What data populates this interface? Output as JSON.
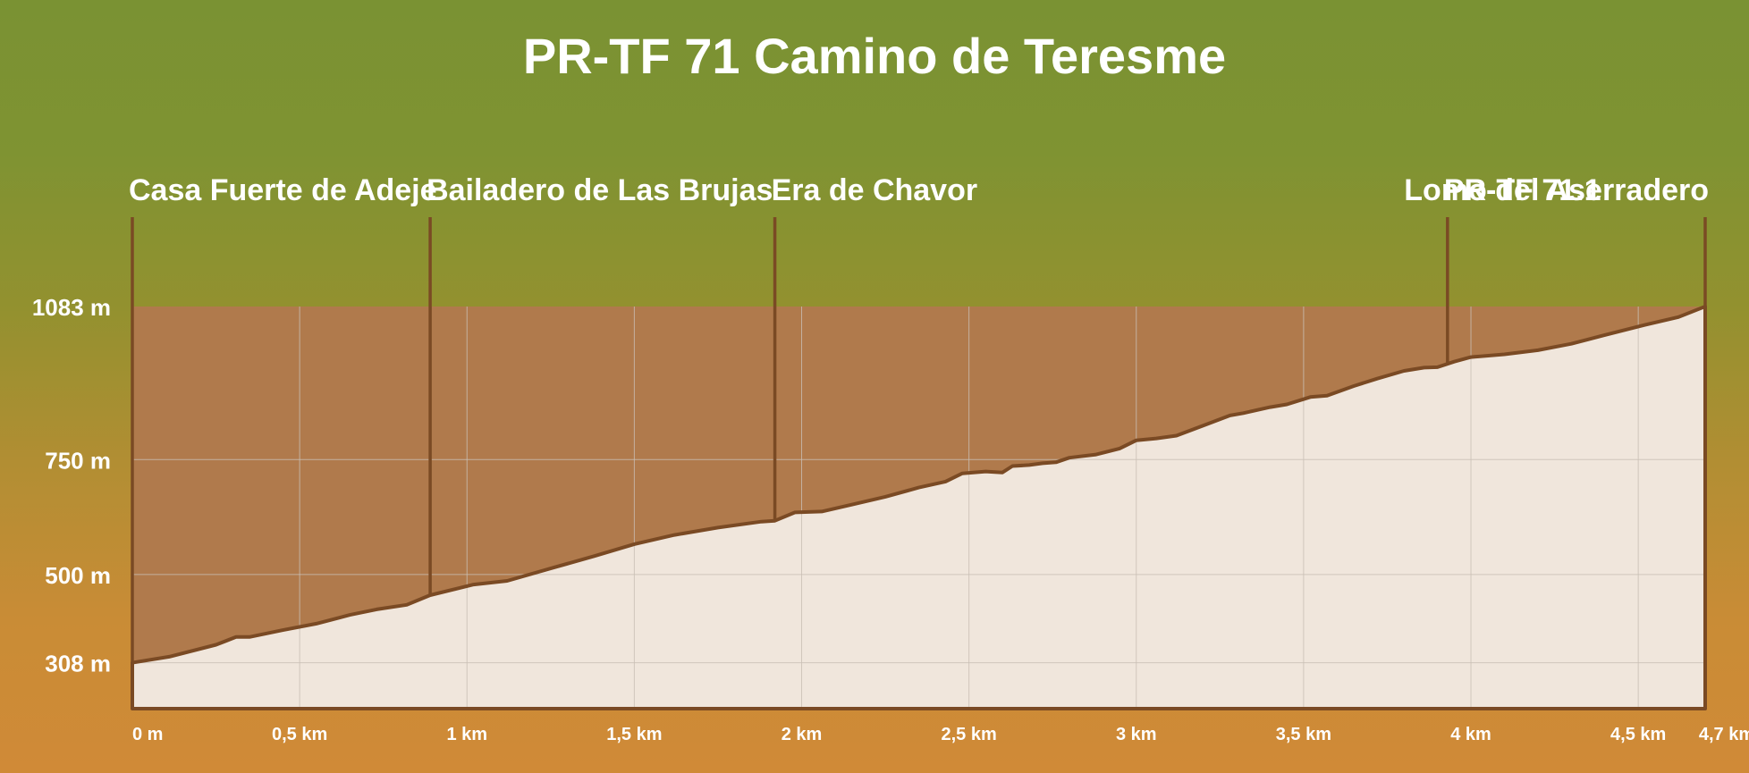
{
  "colors": {
    "upper_fill": "#b07a4c",
    "profile_fill": "#f0e6dc",
    "profile_stroke": "#7a4a24",
    "grid": "#c9bfb5",
    "text": "#ffffff"
  },
  "chart_data": {
    "type": "area",
    "title": "PR-TF 71 Camino de Teresme",
    "xlabel": "",
    "ylabel": "",
    "xlim": [
      0,
      4.7
    ],
    "ylim": [
      208,
      1083
    ],
    "grid": true,
    "x_ticks": [
      {
        "value": 0,
        "label": "0 m"
      },
      {
        "value": 0.5,
        "label": "0,5 km"
      },
      {
        "value": 1,
        "label": "1 km"
      },
      {
        "value": 1.5,
        "label": "1,5 km"
      },
      {
        "value": 2,
        "label": "2 km"
      },
      {
        "value": 2.5,
        "label": "2,5 km"
      },
      {
        "value": 3,
        "label": "3 km"
      },
      {
        "value": 3.5,
        "label": "3,5 km"
      },
      {
        "value": 4,
        "label": "4 km"
      },
      {
        "value": 4.5,
        "label": "4,5 km"
      },
      {
        "value": 4.7,
        "label": "4,7 km"
      }
    ],
    "y_ticks": [
      {
        "value": 308,
        "label": "308 m"
      },
      {
        "value": 500,
        "label": "500 m"
      },
      {
        "value": 750,
        "label": "750 m"
      },
      {
        "value": 1083,
        "label": "1083 m"
      }
    ],
    "waypoints": [
      {
        "x": 0,
        "label": "Casa Fuerte de Adeje"
      },
      {
        "x": 0.89,
        "label": "Bailadero de Las Brujas"
      },
      {
        "x": 1.92,
        "label": "Era de Chavor"
      },
      {
        "x": 3.93,
        "label": "PR-TF 71.1"
      },
      {
        "x": 4.7,
        "label": "Lomo del Aserradero"
      }
    ],
    "series": [
      {
        "x": [
          0,
          0.11,
          0.25,
          0.31,
          0.35,
          0.45,
          0.55,
          0.65,
          0.73,
          0.82,
          0.89,
          1.02,
          1.12,
          1.25,
          1.38,
          1.5,
          1.62,
          1.75,
          1.88,
          1.92,
          1.98,
          2.06,
          2.15,
          2.25,
          2.35,
          2.43,
          2.48,
          2.55,
          2.6,
          2.63,
          2.68,
          2.72,
          2.76,
          2.8,
          2.88,
          2.95,
          3.0,
          3.06,
          3.12,
          3.2,
          3.28,
          3.32,
          3.4,
          3.45,
          3.52,
          3.57,
          3.65,
          3.72,
          3.8,
          3.86,
          3.9,
          3.95,
          4.0,
          4.1,
          4.2,
          4.3,
          4.4,
          4.52,
          4.62,
          4.7
        ],
        "y": [
          308,
          321,
          347,
          364,
          364,
          379,
          393,
          412,
          424,
          434,
          455,
          478,
          486,
          513,
          540,
          566,
          586,
          602,
          615,
          617,
          635,
          637,
          652,
          669,
          689,
          702,
          720,
          724,
          722,
          736,
          738,
          742,
          744,
          754,
          761,
          774,
          792,
          796,
          802,
          824,
          846,
          851,
          864,
          870,
          886,
          889,
          910,
          926,
          943,
          950,
          951,
          963,
          973,
          979,
          988,
          1002,
          1021,
          1043,
          1060,
          1083
        ]
      }
    ]
  }
}
